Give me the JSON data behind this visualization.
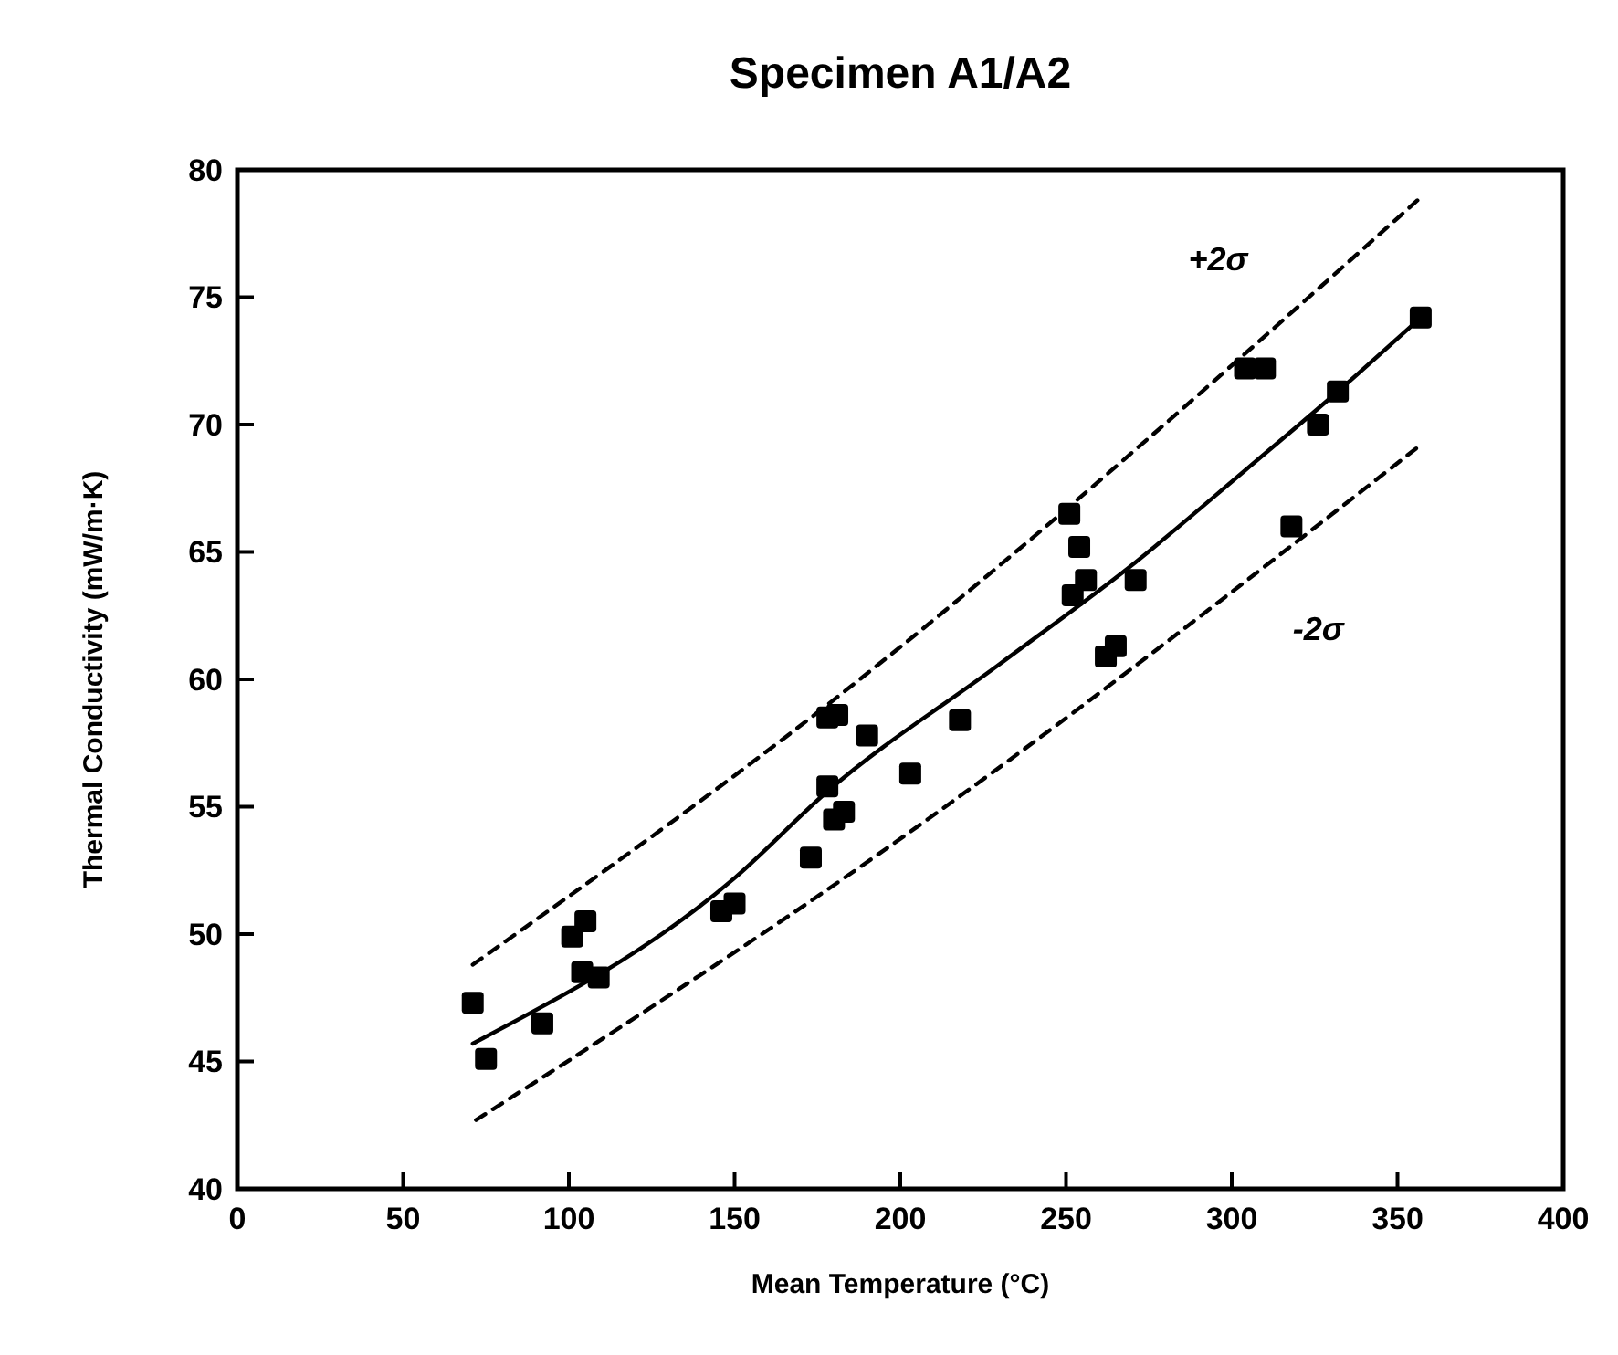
{
  "chart_data": {
    "type": "scatter",
    "title": "Specimen A1/A2",
    "xlabel": "Mean Temperature (°C)",
    "ylabel": "Thermal Conductivity (mW/m·K)",
    "xlim": [
      0,
      400
    ],
    "xticks": [
      0,
      50,
      100,
      150,
      200,
      250,
      300,
      350,
      400
    ],
    "ylim": [
      40,
      80
    ],
    "yticks": [
      40,
      45,
      50,
      55,
      60,
      65,
      70,
      75,
      80
    ],
    "grid": false,
    "series": [
      {
        "marker": "square",
        "color": "#000000",
        "x": [
          71,
          75,
          92,
          101,
          105,
          104,
          109,
          146,
          150,
          173,
          180,
          183,
          178,
          178,
          181,
          190,
          203,
          218,
          251,
          254,
          256,
          252,
          271,
          262,
          265,
          304,
          310,
          326,
          332,
          318,
          357
        ],
        "values": [
          47.3,
          45.1,
          46.5,
          49.9,
          50.5,
          48.5,
          48.3,
          50.9,
          51.2,
          53.0,
          54.5,
          54.8,
          55.8,
          58.5,
          58.6,
          57.8,
          56.3,
          58.4,
          66.5,
          65.2,
          63.9,
          63.3,
          63.9,
          60.9,
          61.3,
          72.2,
          72.2,
          70.0,
          71.3,
          66.0,
          74.2
        ]
      },
      {
        "type": "line",
        "line_style": "solid",
        "marker": "none",
        "color": "#000000",
        "x": [
          71,
          150,
          178,
          230,
          271,
          304,
          332,
          357
        ],
        "values": [
          45.7,
          52.2,
          55.6,
          60.6,
          64.6,
          68.2,
          71.3,
          74.2
        ]
      },
      {
        "type": "line",
        "line_style": "dashed",
        "marker": "none",
        "color": "#000000",
        "x": [
          71,
          177,
          356
        ],
        "values": [
          48.8,
          58.9,
          78.8
        ]
      },
      {
        "type": "line",
        "line_style": "dashed",
        "marker": "none",
        "color": "#000000",
        "x": [
          72,
          193,
          357
        ],
        "values": [
          42.7,
          53.1,
          69.2
        ]
      }
    ],
    "annotations": [
      {
        "text": "+2σ",
        "x": 308,
        "y": 73.5
      },
      {
        "text": "-2σ",
        "x": 314,
        "y": 65.0
      }
    ]
  }
}
